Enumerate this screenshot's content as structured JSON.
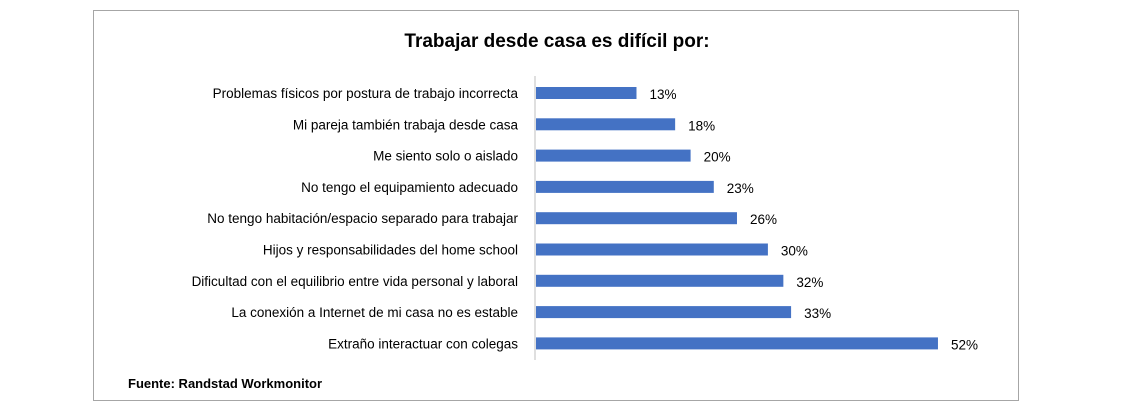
{
  "chart_data": {
    "type": "bar",
    "orientation": "horizontal",
    "title": "Trabajar desde casa es difícil por:",
    "categories": [
      "Problemas físicos por postura de trabajo incorrecta",
      "Mi pareja también trabaja desde casa",
      "Me siento solo o aislado",
      "No tengo el equipamiento adecuado",
      "No tengo habitación/espacio separado para trabajar",
      "Hijos y responsabilidades del home school",
      "Dificultad con el equilibrio entre vida personal y laboral",
      "La conexión a Internet de mi casa no es estable",
      "Extraño interactuar con colegas"
    ],
    "values": [
      13,
      18,
      20,
      23,
      26,
      30,
      32,
      33,
      52
    ],
    "data_labels": [
      "13%",
      "18%",
      "20%",
      "23%",
      "26%",
      "30%",
      "32%",
      "33%",
      "52%"
    ],
    "xlabel": "",
    "ylabel": "",
    "xlim": [
      0,
      60
    ],
    "grid": false,
    "bar_color": "#4472C4"
  },
  "source": "Fuente: Randstad  Workmonitor"
}
